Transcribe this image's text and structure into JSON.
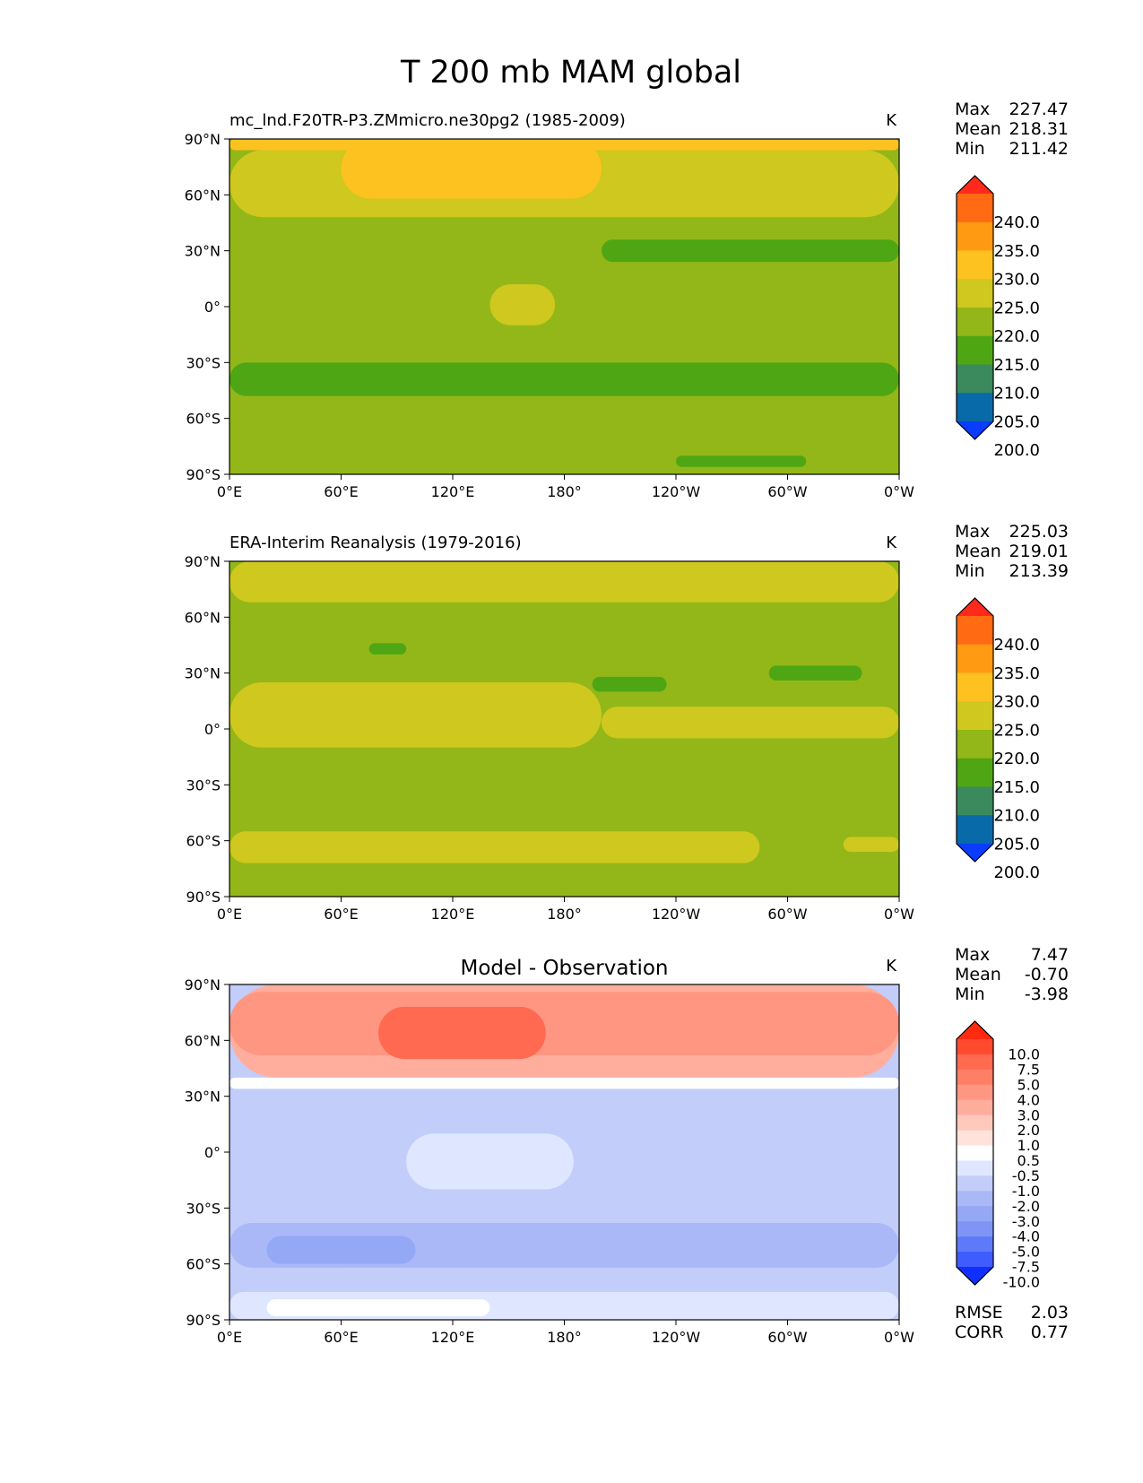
{
  "figure_title": "T 200 mb MAM global",
  "chart_data": [
    {
      "type": "heatmap",
      "title": "mc_lnd.F20TR-P3.ZMmicro.ne30pg2 (1985-2009)",
      "units": "K",
      "xlabel": "",
      "ylabel": "",
      "x_ticks": [
        "0°E",
        "60°E",
        "120°E",
        "180°",
        "120°W",
        "60°W",
        "0°W"
      ],
      "y_ticks": [
        "90°N",
        "60°N",
        "30°N",
        "0°",
        "30°S",
        "60°S",
        "90°S"
      ],
      "xlim": [
        0,
        360
      ],
      "ylim": [
        -90,
        90
      ],
      "stats": [
        {
          "label": "Max",
          "value": "227.47"
        },
        {
          "label": "Mean",
          "value": "218.31"
        },
        {
          "label": "Min",
          "value": "211.42"
        }
      ],
      "colorbar": {
        "labels": [
          "240.0",
          "235.0",
          "230.0",
          "225.0",
          "220.0",
          "215.0",
          "210.0",
          "205.0",
          "200.0"
        ],
        "colors_top_to_bottom": [
          "#ff2a1c",
          "#ff6a12",
          "#ff9a12",
          "#fdc21f",
          "#cfc81e",
          "#93b718",
          "#4ea614",
          "#3a8a5e",
          "#086aa8",
          "#0a3cff"
        ]
      },
      "background_color": "#93b718",
      "regions": [
        {
          "color": "#cfc81e",
          "lat": [
            48,
            84
          ],
          "lon": [
            0,
            360
          ]
        },
        {
          "color": "#fdc21f",
          "lat": [
            58,
            90
          ],
          "lon": [
            60,
            200
          ]
        },
        {
          "color": "#fdc21f",
          "lat": [
            84,
            90
          ],
          "lon": [
            0,
            360
          ]
        },
        {
          "color": "#4ea614",
          "lat": [
            24,
            36
          ],
          "lon": [
            200,
            360
          ]
        },
        {
          "color": "#4ea614",
          "lat": [
            -48,
            -30
          ],
          "lon": [
            0,
            360
          ]
        },
        {
          "color": "#4ea614",
          "lat": [
            -86,
            -80
          ],
          "lon": [
            240,
            310
          ]
        },
        {
          "color": "#cfc81e",
          "lat": [
            -10,
            12
          ],
          "lon": [
            140,
            175
          ]
        }
      ]
    },
    {
      "type": "heatmap",
      "title": "ERA-Interim Reanalysis (1979-2016)",
      "units": "K",
      "xlabel": "",
      "ylabel": "",
      "x_ticks": [
        "0°E",
        "60°E",
        "120°E",
        "180°",
        "120°W",
        "60°W",
        "0°W"
      ],
      "y_ticks": [
        "90°N",
        "60°N",
        "30°N",
        "0°",
        "30°S",
        "60°S",
        "90°S"
      ],
      "xlim": [
        0,
        360
      ],
      "ylim": [
        -90,
        90
      ],
      "stats": [
        {
          "label": "Max",
          "value": "225.03"
        },
        {
          "label": "Mean",
          "value": "219.01"
        },
        {
          "label": "Min",
          "value": "213.39"
        }
      ],
      "colorbar": {
        "labels": [
          "240.0",
          "235.0",
          "230.0",
          "225.0",
          "220.0",
          "215.0",
          "210.0",
          "205.0",
          "200.0"
        ],
        "colors_top_to_bottom": [
          "#ff2a1c",
          "#ff6a12",
          "#ff9a12",
          "#fdc21f",
          "#cfc81e",
          "#93b718",
          "#4ea614",
          "#3a8a5e",
          "#086aa8",
          "#0a3cff"
        ]
      },
      "background_color": "#93b718",
      "regions": [
        {
          "color": "#cfc81e",
          "lat": [
            68,
            90
          ],
          "lon": [
            0,
            360
          ]
        },
        {
          "color": "#cfc81e",
          "lat": [
            -10,
            25
          ],
          "lon": [
            0,
            200
          ]
        },
        {
          "color": "#cfc81e",
          "lat": [
            -5,
            12
          ],
          "lon": [
            200,
            360
          ]
        },
        {
          "color": "#cfc81e",
          "lat": [
            -72,
            -55
          ],
          "lon": [
            0,
            285
          ]
        },
        {
          "color": "#cfc81e",
          "lat": [
            -66,
            -58
          ],
          "lon": [
            330,
            360
          ]
        },
        {
          "color": "#4ea614",
          "lat": [
            26,
            34
          ],
          "lon": [
            290,
            340
          ]
        },
        {
          "color": "#4ea614",
          "lat": [
            40,
            46
          ],
          "lon": [
            75,
            95
          ]
        },
        {
          "color": "#4ea614",
          "lat": [
            20,
            28
          ],
          "lon": [
            195,
            235
          ]
        }
      ]
    },
    {
      "type": "heatmap",
      "title": "Model - Observation",
      "units": "K",
      "xlabel": "",
      "ylabel": "",
      "x_ticks": [
        "0°E",
        "60°E",
        "120°E",
        "180°",
        "120°W",
        "60°W",
        "0°W"
      ],
      "y_ticks": [
        "90°N",
        "60°N",
        "30°N",
        "0°",
        "30°S",
        "60°S",
        "90°S"
      ],
      "xlim": [
        0,
        360
      ],
      "ylim": [
        -90,
        90
      ],
      "stats": [
        {
          "label": "Max",
          "value": "7.47"
        },
        {
          "label": "Mean",
          "value": "-0.70"
        },
        {
          "label": "Min",
          "value": "-3.98"
        }
      ],
      "extra_stats": [
        {
          "label": "RMSE",
          "value": "2.03"
        },
        {
          "label": "CORR",
          "value": "0.77"
        }
      ],
      "colorbar": {
        "labels": [
          "10.0",
          "7.5",
          "5.0",
          "4.0",
          "3.0",
          "2.0",
          "1.0",
          "0.5",
          "-0.5",
          "-1.0",
          "-2.0",
          "-3.0",
          "-4.0",
          "-5.0",
          "-7.5",
          "-10.0"
        ],
        "colors_top_to_bottom": [
          "#ff2a10",
          "#ff4a30",
          "#ff6a50",
          "#ff7f66",
          "#ff9682",
          "#ffae9e",
          "#ffc8bc",
          "#ffe2dc",
          "#ffffff",
          "#dfe6ff",
          "#c2cdfa",
          "#aab8f8",
          "#95a8f6",
          "#7f95f5",
          "#5f7af8",
          "#3f5cff",
          "#1030ff"
        ]
      },
      "background_color": "#c2cdfa",
      "regions": [
        {
          "color": "#ffae9e",
          "lat": [
            40,
            90
          ],
          "lon": [
            0,
            360
          ]
        },
        {
          "color": "#ff9682",
          "lat": [
            52,
            86
          ],
          "lon": [
            0,
            360
          ]
        },
        {
          "color": "#ff6a50",
          "lat": [
            50,
            78
          ],
          "lon": [
            80,
            170
          ]
        },
        {
          "color": "#ffffff",
          "lat": [
            34,
            40
          ],
          "lon": [
            0,
            360
          ]
        },
        {
          "color": "#dfe6ff",
          "lat": [
            -20,
            10
          ],
          "lon": [
            95,
            185
          ]
        },
        {
          "color": "#aab8f8",
          "lat": [
            -62,
            -38
          ],
          "lon": [
            0,
            360
          ]
        },
        {
          "color": "#95a8f6",
          "lat": [
            -60,
            -45
          ],
          "lon": [
            20,
            100
          ]
        },
        {
          "color": "#dfe6ff",
          "lat": [
            -90,
            -75
          ],
          "lon": [
            0,
            360
          ]
        },
        {
          "color": "#ffffff",
          "lat": [
            -88,
            -79
          ],
          "lon": [
            20,
            140
          ]
        }
      ]
    }
  ]
}
